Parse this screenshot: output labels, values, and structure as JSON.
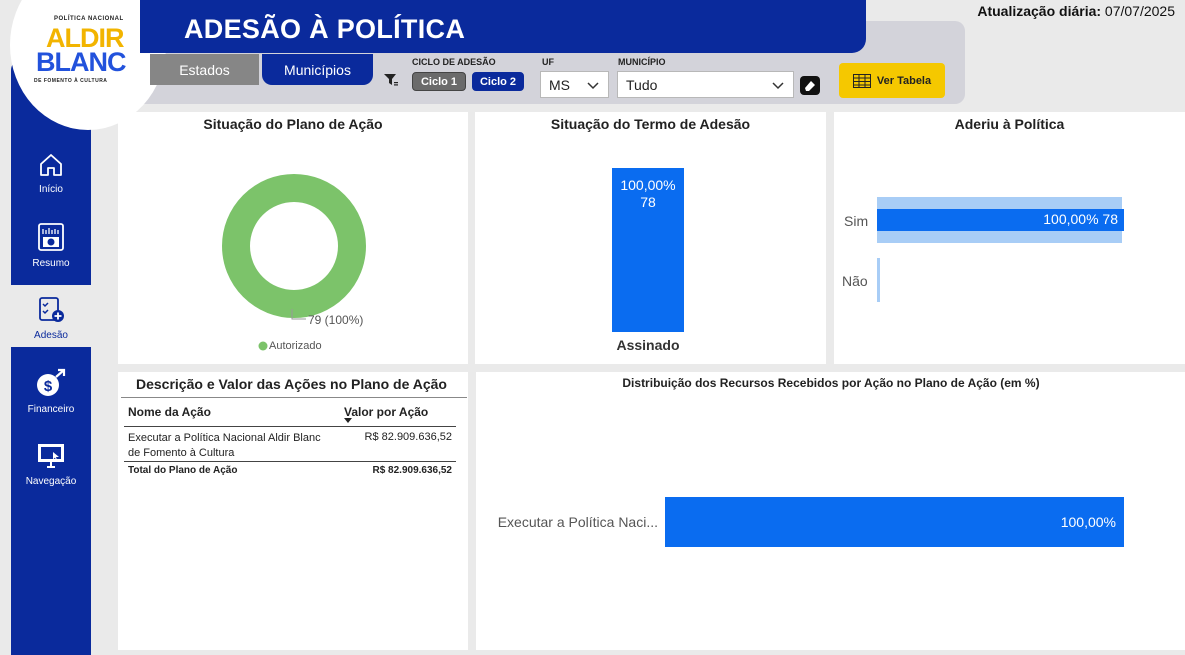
{
  "header": {
    "title": "ADESÃO À POLÍTICA",
    "update_label": "Atualização diária:",
    "update_date": "07/07/2025"
  },
  "logo": {
    "top_text": "POLÍTICA NACIONAL",
    "word1": "ALDIR",
    "word2": "BLANC",
    "bottom_text": "DE FOMENTO À CULTURA"
  },
  "tabs": [
    {
      "label": "Estados"
    },
    {
      "label": "Municípios"
    }
  ],
  "filters": {
    "ciclo_label": "CICLO DE ADESÃO",
    "ciclo1": "Ciclo 1",
    "ciclo2": "Ciclo 2",
    "uf_label": "UF",
    "uf_value": "MS",
    "municipio_label": "MUNICÍPIO",
    "municipio_value": "Tudo",
    "ver_tabela": "Ver Tabela"
  },
  "sidebar": {
    "items": [
      {
        "label": "Início",
        "icon": "home-icon"
      },
      {
        "label": "Resumo",
        "icon": "report-icon"
      },
      {
        "label": "Adesão",
        "icon": "checklist-icon"
      },
      {
        "label": "Financeiro",
        "icon": "money-icon"
      },
      {
        "label": "Navegação",
        "icon": "monitor-icon"
      }
    ]
  },
  "plano_acao": {
    "title": "Situação do Plano de Ação",
    "label": "79 (100%)",
    "legend": "Autorizado",
    "color": "#7cc36a"
  },
  "termo_adesao": {
    "title": "Situação do Termo de Adesão",
    "bar_pct": "100,00%",
    "bar_count": "78",
    "category": "Assinado",
    "color": "#0a6cf0"
  },
  "aderiu": {
    "title": "Aderiu à Política",
    "rows": [
      {
        "label": "Sim",
        "value_label": "100,00% 78"
      },
      {
        "label": "Não",
        "value_label": ""
      }
    ]
  },
  "descricao": {
    "title": "Descrição e Valor das Ações no Plano de Ação",
    "col1": "Nome da Ação",
    "col2": "Valor por Ação",
    "row_name": "Executar a Política Nacional Aldir Blanc de Fomento à Cultura",
    "row_value": "R$ 82.909.636,52",
    "total_label": "Total do Plano de Ação",
    "total_value": "R$ 82.909.636,52"
  },
  "distribuicao": {
    "title": "Distribuição dos Recursos Recebidos por Ação no Plano de Ação (em %)",
    "category": "Executar a Política Naci...",
    "value_label": "100,00%"
  },
  "chart_data": [
    {
      "type": "pie",
      "title": "Situação do Plano de Ação",
      "categories": [
        "Autorizado"
      ],
      "values": [
        79
      ],
      "labels": [
        "79 (100%)"
      ]
    },
    {
      "type": "bar",
      "title": "Situação do Termo de Adesão",
      "categories": [
        "Assinado"
      ],
      "values": [
        78
      ],
      "labels": [
        "100,00%",
        "78"
      ]
    },
    {
      "type": "bar",
      "title": "Aderiu à Política",
      "orientation": "horizontal",
      "categories": [
        "Sim",
        "Não"
      ],
      "values": [
        78,
        0
      ],
      "percent": [
        100,
        0
      ]
    },
    {
      "type": "bar",
      "title": "Distribuição dos Recursos Recebidos por Ação no Plano de Ação (em %)",
      "orientation": "horizontal",
      "categories": [
        "Executar a Política Naci..."
      ],
      "values": [
        100
      ]
    }
  ]
}
